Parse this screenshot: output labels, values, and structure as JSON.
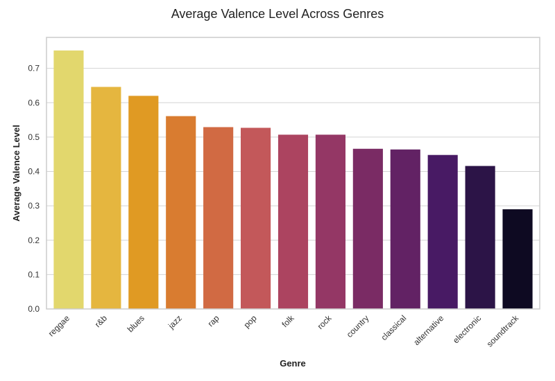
{
  "chart_data": {
    "type": "bar",
    "title": "Average Valence Level Across Genres",
    "xlabel": "Genre",
    "ylabel": "Average Valence Level",
    "categories": [
      "reggae",
      "r&b",
      "blues",
      "jazz",
      "rap",
      "pop",
      "folk",
      "rock",
      "country",
      "classical",
      "alternative",
      "electronic",
      "soundtrack"
    ],
    "values": [
      0.752,
      0.646,
      0.62,
      0.561,
      0.529,
      0.527,
      0.507,
      0.507,
      0.466,
      0.464,
      0.448,
      0.416,
      0.29
    ],
    "colors": [
      "#E2D76D",
      "#E5B63F",
      "#E09A23",
      "#D97C30",
      "#D16A43",
      "#C3585A",
      "#AC4460",
      "#943765",
      "#7A2B64",
      "#622264",
      "#481A64",
      "#2C1447",
      "#0E0A22"
    ],
    "yticks": [
      "0.0",
      "0.1",
      "0.2",
      "0.3",
      "0.4",
      "0.5",
      "0.6",
      "0.7"
    ],
    "ylim": [
      0,
      0.79
    ],
    "grid": "y",
    "legend": "none"
  }
}
